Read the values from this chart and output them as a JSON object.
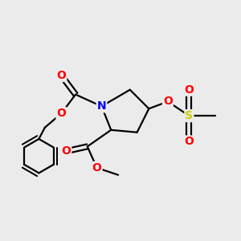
{
  "background_color": "#ebebeb",
  "atom_colors": {
    "C": "#000000",
    "N": "#0000ee",
    "O": "#ff0000",
    "S": "#cccc00"
  },
  "line_color": "#000000",
  "line_width": 1.6,
  "figsize": [
    3.0,
    3.0
  ],
  "dpi": 100,
  "xlim": [
    0,
    10
  ],
  "ylim": [
    0,
    10
  ]
}
